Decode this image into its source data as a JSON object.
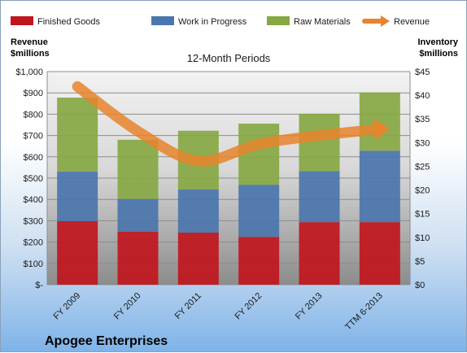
{
  "chart_data": {
    "type": "bar",
    "subtype": "stacked-bar-with-line",
    "title": "12-Month Periods",
    "company": "Apogee Enterprises",
    "categories": [
      "FY 2009",
      "FY 2010",
      "FY 2011",
      "FY 2012",
      "FY 2013",
      "TTM 6-2013"
    ],
    "series": [
      {
        "name": "Finished Goods",
        "axis": "right",
        "color": "#c0161c",
        "values": [
          13.4,
          11.2,
          11.0,
          10.1,
          13.2,
          13.2
        ]
      },
      {
        "name": "Work in Progress",
        "axis": "right",
        "color": "#4a75ad",
        "values": [
          10.5,
          6.9,
          9.1,
          11.0,
          10.8,
          15.1
        ]
      },
      {
        "name": "Raw Materials",
        "axis": "right",
        "color": "#86a843",
        "values": [
          15.6,
          12.5,
          12.4,
          12.9,
          12.1,
          12.3
        ]
      },
      {
        "name": "Revenue",
        "axis": "left",
        "type": "line",
        "color": "#e8842c",
        "values": [
          930,
          720,
          580,
          660,
          700,
          730
        ]
      }
    ],
    "left_axis": {
      "label": "Revenue\n$millions",
      "lines": [
        "Revenue",
        "$millions"
      ],
      "ylim": [
        0,
        1000
      ],
      "tick_labels": [
        "$-",
        "$100",
        "$200",
        "$300",
        "$400",
        "$500",
        "$600",
        "$700",
        "$800",
        "$900",
        "$1,000"
      ]
    },
    "right_axis": {
      "label": "Inventory\n$millions",
      "lines": [
        "Inventory",
        "$millions"
      ],
      "ylim": [
        0,
        45
      ],
      "tick_labels": [
        "$0",
        "$5",
        "$10",
        "$15",
        "$20",
        "$25",
        "$30",
        "$35",
        "$40",
        "$45"
      ]
    },
    "legend_position": "top",
    "grid": true
  }
}
